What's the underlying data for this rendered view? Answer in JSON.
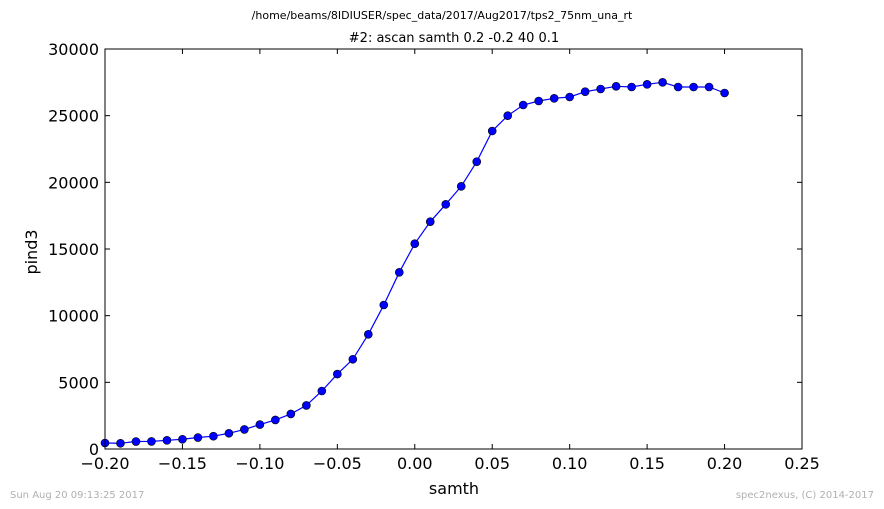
{
  "figure": {
    "suptitle": "/home/beams/8IDIUSER/spec_data/2017/Aug2017/tps2_75nm_una_rt",
    "footer_left": "Sun Aug 20 09:13:25 2017",
    "footer_right": "spec2nexus, (C) 2014-2017"
  },
  "chart_data": {
    "type": "line",
    "title": "#2: ascan  samth 0.2 -0.2  40 0.1",
    "xlabel": "samth",
    "ylabel": "pind3",
    "xlim": [
      -0.2,
      0.25
    ],
    "ylim": [
      0,
      30000
    ],
    "xticks": [
      -0.2,
      -0.15,
      -0.1,
      -0.05,
      0.0,
      0.05,
      0.1,
      0.15,
      0.2,
      0.25
    ],
    "xtick_labels": [
      "−0.20",
      "−0.15",
      "−0.10",
      "−0.05",
      "0.00",
      "0.05",
      "0.10",
      "0.15",
      "0.20",
      "0.25"
    ],
    "yticks": [
      0,
      5000,
      10000,
      15000,
      20000,
      25000,
      30000
    ],
    "ytick_labels": [
      "0",
      "5000",
      "10000",
      "15000",
      "20000",
      "25000",
      "30000"
    ],
    "grid": false,
    "color": "#0000ff",
    "marker": "circle",
    "x": [
      -0.2,
      -0.19,
      -0.18,
      -0.17,
      -0.16,
      -0.15,
      -0.14,
      -0.13,
      -0.12,
      -0.11,
      -0.1,
      -0.09,
      -0.08,
      -0.07,
      -0.06,
      -0.05,
      -0.04,
      -0.03,
      -0.02,
      -0.01,
      0.0,
      0.01,
      0.02,
      0.03,
      0.04,
      0.05,
      0.06,
      0.07,
      0.08,
      0.09,
      0.1,
      0.11,
      0.12,
      0.13,
      0.14,
      0.15,
      0.16,
      0.17,
      0.18,
      0.19,
      0.2
    ],
    "y": [
      450,
      430,
      560,
      570,
      650,
      730,
      860,
      960,
      1180,
      1470,
      1830,
      2180,
      2630,
      3270,
      4350,
      5620,
      6730,
      8600,
      10800,
      13250,
      15400,
      17050,
      18350,
      19700,
      21550,
      23850,
      25000,
      25800,
      26100,
      26300,
      26400,
      26800,
      27000,
      27200,
      27150,
      27350,
      27500,
      27150,
      27150,
      27150,
      26700
    ]
  }
}
